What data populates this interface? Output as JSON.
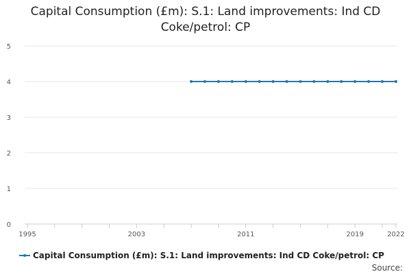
{
  "chart_data": {
    "type": "line",
    "title_lines": [
      "Capital Consumption (£m): S.1: Land improvements: Ind CD",
      "Coke/petrol: CP"
    ],
    "xlabel": "",
    "ylabel": "",
    "xlim": [
      1995,
      2022
    ],
    "ylim": [
      0,
      5
    ],
    "y_ticks": [
      0,
      1,
      2,
      3,
      4,
      5
    ],
    "x_tick_labels": [
      "1995",
      "2003",
      "2011",
      "2019",
      "2022"
    ],
    "x_minor_ticks": [
      1995,
      1997,
      1999,
      2001,
      2003,
      2005,
      2007,
      2009,
      2011,
      2013,
      2015,
      2017,
      2019,
      2021,
      2022
    ],
    "grid": true,
    "legend_position": "bottom-left",
    "series": [
      {
        "name": "Capital Consumption (£m): S.1: Land improvements: Ind CD Coke/petrol: CP",
        "color": "#1f77b4",
        "x": [
          2007,
          2008,
          2009,
          2010,
          2011,
          2012,
          2013,
          2014,
          2015,
          2016,
          2017,
          2018,
          2019,
          2020,
          2021,
          2022
        ],
        "y": [
          4,
          4,
          4,
          4,
          4,
          4,
          4,
          4,
          4,
          4,
          4,
          4,
          4,
          4,
          4,
          4
        ]
      }
    ]
  },
  "legend": {
    "label": "Capital Consumption (£m): S.1: Land improvements: Ind CD Coke/petrol: CP"
  },
  "source_label": "Source:"
}
